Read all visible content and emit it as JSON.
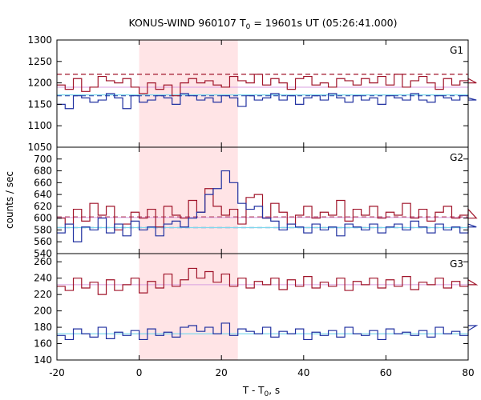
{
  "title": {
    "main": "KONUS-WIND 960107 T",
    "sub": "0",
    "rest": " = 19601s UT (05:26:41.000)"
  },
  "ylabel": "counts / sec",
  "xlabel": {
    "main": "T - T",
    "sub": "0",
    "rest": ", s"
  },
  "colors": {
    "red": "#a0142a",
    "blue": "#2030a0",
    "pink": "#ffe4e6",
    "cyan": "#7fd8ec",
    "violet": "#d8a0e0"
  },
  "chart_data": {
    "type": "line",
    "step": true,
    "bin_width": 2,
    "xlim": [
      -20,
      80
    ],
    "xticks": [
      -20,
      0,
      20,
      40,
      60,
      80
    ],
    "shaded_interval": [
      0,
      24
    ],
    "panels": [
      {
        "label": "G1",
        "ylim": [
          1050,
          1300
        ],
        "yticks": [
          1050,
          1100,
          1150,
          1200,
          1250,
          1300
        ],
        "red_level": 1220,
        "blue_level": 1170,
        "red_fit": 1190,
        "blue_fit": 1172,
        "series": [
          {
            "color": "red",
            "values": [
              1195,
              1185,
              1210,
              1180,
              1190,
              1215,
              1205,
              1200,
              1210,
              1190,
              1175,
              1200,
              1185,
              1195,
              1170,
              1200,
              1210,
              1200,
              1205,
              1195,
              1190,
              1215,
              1205,
              1200,
              1220,
              1195,
              1210,
              1200,
              1185,
              1210,
              1215,
              1195,
              1200,
              1190,
              1210,
              1205,
              1195,
              1210,
              1200,
              1215,
              1195,
              1220,
              1190,
              1205,
              1215,
              1200,
              1185,
              1210,
              1195,
              1205,
              1210,
              1200
            ]
          },
          {
            "color": "blue",
            "values": [
              1150,
              1140,
              1170,
              1165,
              1155,
              1160,
              1175,
              1165,
              1140,
              1170,
              1155,
              1160,
              1170,
              1165,
              1150,
              1175,
              1170,
              1160,
              1165,
              1155,
              1170,
              1165,
              1145,
              1170,
              1160,
              1165,
              1175,
              1160,
              1170,
              1150,
              1165,
              1170,
              1160,
              1175,
              1165,
              1155,
              1170,
              1160,
              1165,
              1150,
              1170,
              1165,
              1160,
              1175,
              1160,
              1155,
              1170,
              1165,
              1160,
              1170,
              1165,
              1160
            ]
          }
        ]
      },
      {
        "label": "G2",
        "ylim": [
          540,
          720
        ],
        "yticks": [
          540,
          560,
          580,
          600,
          620,
          640,
          660,
          680,
          700
        ],
        "red_level": 602,
        "blue_level": 584,
        "red_fit": 601,
        "blue_fit": 584,
        "series": [
          {
            "color": "red",
            "values": [
              600,
              590,
              615,
              595,
              625,
              605,
              620,
              580,
              590,
              610,
              600,
              615,
              585,
              620,
              605,
              600,
              630,
              610,
              650,
              620,
              605,
              615,
              590,
              635,
              640,
              600,
              625,
              610,
              590,
              605,
              620,
              600,
              610,
              605,
              630,
              595,
              615,
              605,
              620,
              600,
              610,
              605,
              625,
              600,
              615,
              595,
              610,
              620,
              600,
              605,
              615,
              600
            ]
          },
          {
            "color": "blue",
            "values": [
              575,
              590,
              560,
              585,
              580,
              600,
              575,
              590,
              570,
              595,
              580,
              585,
              570,
              590,
              595,
              585,
              600,
              610,
              640,
              650,
              680,
              660,
              625,
              615,
              620,
              600,
              595,
              580,
              590,
              585,
              575,
              590,
              580,
              585,
              570,
              590,
              585,
              580,
              590,
              575,
              585,
              590,
              580,
              595,
              585,
              575,
              590,
              580,
              585,
              575,
              590,
              585
            ]
          }
        ]
      },
      {
        "label": "G3",
        "ylim": [
          140,
          270
        ],
        "yticks": [
          140,
          160,
          180,
          200,
          220,
          240,
          260
        ],
        "red_fit": 232,
        "blue_fit": 172,
        "series": [
          {
            "color": "red",
            "values": [
              230,
              225,
              240,
              228,
              235,
              220,
              238,
              225,
              232,
              240,
              222,
              236,
              228,
              245,
              230,
              238,
              252,
              240,
              248,
              235,
              245,
              230,
              240,
              228,
              236,
              232,
              240,
              226,
              238,
              230,
              242,
              228,
              235,
              230,
              240,
              225,
              236,
              232,
              240,
              228,
              238,
              230,
              242,
              226,
              235,
              232,
              240,
              228,
              236,
              230,
              238,
              232
            ]
          },
          {
            "color": "blue",
            "values": [
              170,
              165,
              178,
              172,
              168,
              180,
              166,
              174,
              170,
              176,
              165,
              178,
              170,
              174,
              168,
              180,
              182,
              175,
              180,
              172,
              185,
              170,
              178,
              175,
              172,
              180,
              168,
              175,
              172,
              178,
              165,
              174,
              170,
              176,
              168,
              180,
              172,
              170,
              176,
              165,
              178,
              172,
              174,
              170,
              176,
              168,
              180,
              172,
              175,
              170,
              176,
              182
            ]
          }
        ]
      }
    ]
  }
}
